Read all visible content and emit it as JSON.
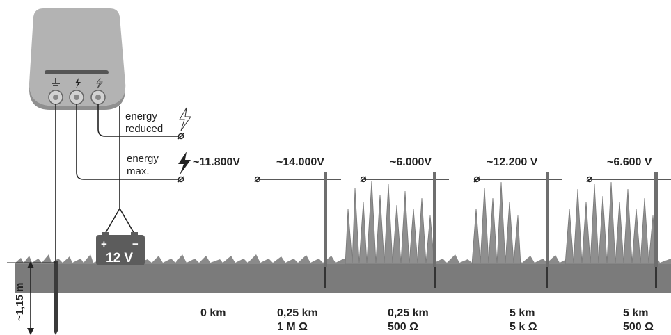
{
  "labels": {
    "energy_reduced": [
      "energy",
      "reduced"
    ],
    "energy_max": [
      "energy",
      "max."
    ],
    "battery": "12 V",
    "battery_plus": "+",
    "battery_minus": "−",
    "depth": "~1,15 m"
  },
  "voltages": [
    "~11.800V",
    "~14.000V",
    "~6.000V",
    "~12.200 V",
    "~6.600 V"
  ],
  "segments": [
    {
      "distance": "0 km",
      "resistance": ""
    },
    {
      "distance": "0,25 km",
      "resistance": "1 M Ω"
    },
    {
      "distance": "0,25 km",
      "resistance": "500 Ω"
    },
    {
      "distance": "5 km",
      "resistance": "5 k Ω"
    },
    {
      "distance": "5 km",
      "resistance": "500 Ω"
    }
  ],
  "colors": {
    "ground": "#7b7b7b",
    "grass": "#8a8a8a",
    "device": "#b3b3b3",
    "device_dark": "#8f8f8f",
    "wire": "#222222",
    "post": "#6e6e6e",
    "battery": "#5c5c5c"
  },
  "icons": [
    "ground-terminal-icon",
    "lightning-icon",
    "lightning-outline-icon",
    "grass-tuft-icon"
  ]
}
